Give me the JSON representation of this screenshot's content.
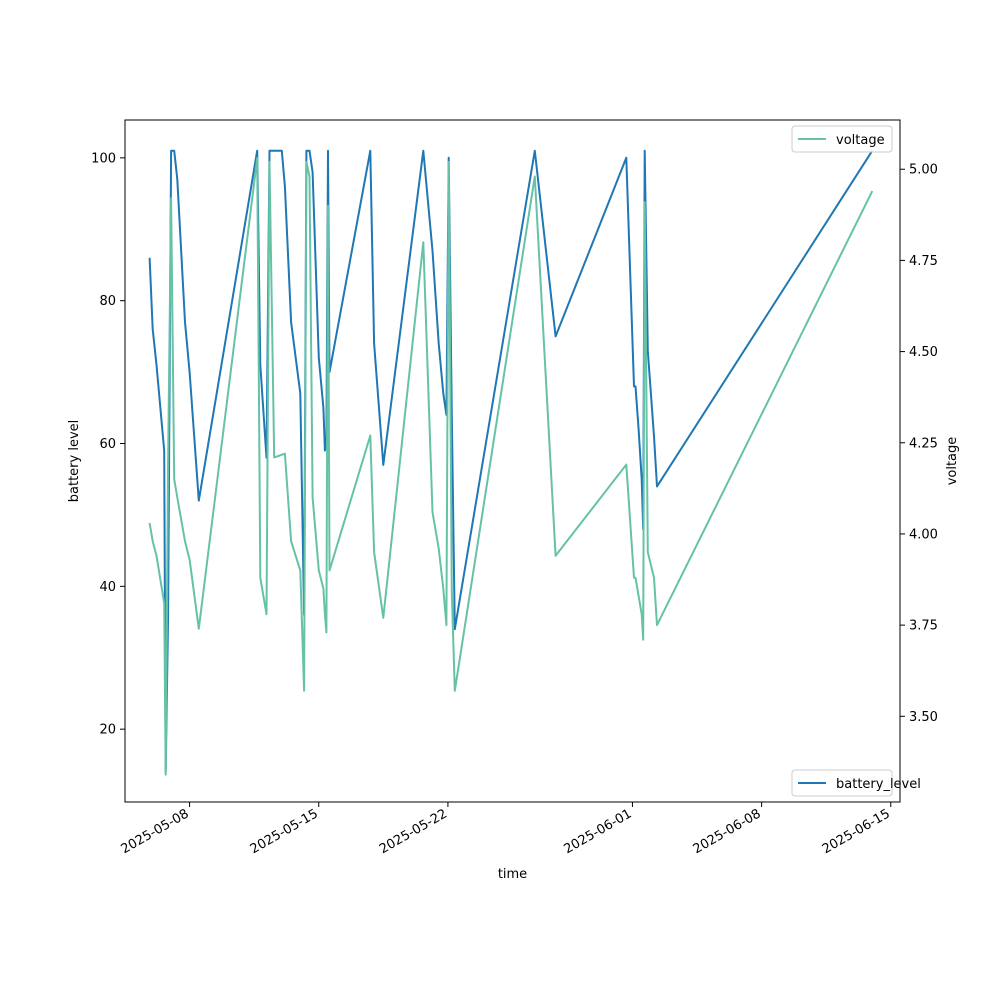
{
  "chart_data": {
    "type": "line",
    "xlabel": "time",
    "ylabel": "battery level",
    "y2label": "voltage",
    "xlim": [
      "2025-05-04T12:00",
      "2025-06-15T12:00"
    ],
    "ylim": [
      9.8,
      105.3
    ],
    "y2lim": [
      3.265,
      5.135
    ],
    "x_ticks": [
      "2025-05-08",
      "2025-05-15",
      "2025-05-22",
      "2025-06-01",
      "2025-06-08",
      "2025-06-15"
    ],
    "y_ticks": [
      20,
      40,
      60,
      80,
      100
    ],
    "y2_ticks": [
      "3.50",
      "3.75",
      "4.00",
      "4.25",
      "4.50",
      "4.75",
      "5.00"
    ],
    "grid": false,
    "series": [
      {
        "name": "battery_level",
        "axis": "left",
        "color": "#1f77b4",
        "legend": "bottom-right",
        "points": [
          [
            "2025-05-05T20:00",
            86
          ],
          [
            "2025-05-06T00:00",
            76
          ],
          [
            "2025-05-06T05:00",
            71
          ],
          [
            "2025-05-06T15:00",
            59
          ],
          [
            "2025-05-06T17:00",
            14
          ],
          [
            "2025-05-06T20:00",
            36
          ],
          [
            "2025-05-07T00:00",
            101
          ],
          [
            "2025-05-07T04:00",
            101
          ],
          [
            "2025-05-07T08:00",
            97
          ],
          [
            "2025-05-07T18:00",
            77
          ],
          [
            "2025-05-08T00:00",
            70
          ],
          [
            "2025-05-08T12:00",
            52
          ],
          [
            "2025-05-11T16:00",
            101
          ],
          [
            "2025-05-11T20:00",
            71
          ],
          [
            "2025-05-12T04:00",
            58
          ],
          [
            "2025-05-12T08:00",
            101
          ],
          [
            "2025-05-13T00:00",
            101
          ],
          [
            "2025-05-13T04:00",
            96
          ],
          [
            "2025-05-13T12:00",
            77
          ],
          [
            "2025-05-14T00:00",
            67
          ],
          [
            "2025-05-14T05:00",
            36
          ],
          [
            "2025-05-14T08:00",
            101
          ],
          [
            "2025-05-14T12:00",
            101
          ],
          [
            "2025-05-14T16:00",
            98
          ],
          [
            "2025-05-15T00:00",
            72
          ],
          [
            "2025-05-15T06:00",
            65
          ],
          [
            "2025-05-15T08:00",
            59
          ],
          [
            "2025-05-15T10:00",
            60
          ],
          [
            "2025-05-15T12:00",
            101
          ],
          [
            "2025-05-15T14:00",
            70
          ],
          [
            "2025-05-17T19:00",
            101
          ],
          [
            "2025-05-18T00:00",
            74
          ],
          [
            "2025-05-18T12:00",
            57
          ],
          [
            "2025-05-20T16:00",
            101
          ],
          [
            "2025-05-21T04:00",
            87
          ],
          [
            "2025-05-21T12:00",
            74
          ],
          [
            "2025-05-21T18:00",
            67
          ],
          [
            "2025-05-21T22:00",
            64
          ],
          [
            "2025-05-22T01:00",
            100
          ],
          [
            "2025-05-22T05:00",
            64
          ],
          [
            "2025-05-22T09:00",
            34
          ],
          [
            "2025-05-26T17:00",
            101
          ],
          [
            "2025-05-27T20:00",
            75
          ],
          [
            "2025-05-31T16:00",
            100
          ],
          [
            "2025-06-01T02:00",
            68
          ],
          [
            "2025-06-01T04:00",
            68
          ],
          [
            "2025-06-01T08:00",
            62
          ],
          [
            "2025-06-01T12:00",
            55
          ],
          [
            "2025-06-01T14:00",
            48
          ],
          [
            "2025-06-01T16:00",
            101
          ],
          [
            "2025-06-01T20:00",
            73
          ],
          [
            "2025-06-02T04:00",
            61
          ],
          [
            "2025-06-02T08:00",
            54
          ],
          [
            "2025-06-14T00:00",
            101
          ]
        ]
      },
      {
        "name": "voltage",
        "axis": "right",
        "color": "#66c2a5",
        "legend": "top-right",
        "points": [
          [
            "2025-05-05T20:00",
            4.03
          ],
          [
            "2025-05-06T00:00",
            3.98
          ],
          [
            "2025-05-06T05:00",
            3.94
          ],
          [
            "2025-05-06T15:00",
            3.81
          ],
          [
            "2025-05-06T17:00",
            3.34
          ],
          [
            "2025-05-06T20:00",
            4.2
          ],
          [
            "2025-05-07T00:00",
            4.92
          ],
          [
            "2025-05-07T04:00",
            4.15
          ],
          [
            "2025-05-07T08:00",
            4.1
          ],
          [
            "2025-05-07T18:00",
            3.98
          ],
          [
            "2025-05-08T00:00",
            3.93
          ],
          [
            "2025-05-08T12:00",
            3.74
          ],
          [
            "2025-05-11T16:00",
            5.03
          ],
          [
            "2025-05-11T20:00",
            3.88
          ],
          [
            "2025-05-12T04:00",
            3.78
          ],
          [
            "2025-05-12T08:00",
            5.02
          ],
          [
            "2025-05-12T14:00",
            4.21
          ],
          [
            "2025-05-13T04:00",
            4.22
          ],
          [
            "2025-05-13T12:00",
            3.98
          ],
          [
            "2025-05-14T00:00",
            3.9
          ],
          [
            "2025-05-14T05:00",
            3.57
          ],
          [
            "2025-05-14T08:00",
            5.02
          ],
          [
            "2025-05-14T12:00",
            4.98
          ],
          [
            "2025-05-14T16:00",
            4.1
          ],
          [
            "2025-05-15T00:00",
            3.9
          ],
          [
            "2025-05-15T06:00",
            3.85
          ],
          [
            "2025-05-15T08:00",
            3.78
          ],
          [
            "2025-05-15T10:00",
            3.73
          ],
          [
            "2025-05-15T12:00",
            4.9
          ],
          [
            "2025-05-15T14:00",
            3.9
          ],
          [
            "2025-05-17T19:00",
            4.27
          ],
          [
            "2025-05-18T00:00",
            3.95
          ],
          [
            "2025-05-18T12:00",
            3.77
          ],
          [
            "2025-05-20T16:00",
            4.8
          ],
          [
            "2025-05-21T04:00",
            4.06
          ],
          [
            "2025-05-21T12:00",
            3.96
          ],
          [
            "2025-05-21T18:00",
            3.85
          ],
          [
            "2025-05-21T22:00",
            3.75
          ],
          [
            "2025-05-22T01:00",
            5.02
          ],
          [
            "2025-05-22T05:00",
            3.84
          ],
          [
            "2025-05-22T09:00",
            3.57
          ],
          [
            "2025-05-26T17:00",
            4.98
          ],
          [
            "2025-05-27T20:00",
            3.94
          ],
          [
            "2025-05-31T16:00",
            4.19
          ],
          [
            "2025-06-01T02:00",
            3.88
          ],
          [
            "2025-06-01T04:00",
            3.88
          ],
          [
            "2025-06-01T08:00",
            3.83
          ],
          [
            "2025-06-01T12:00",
            3.78
          ],
          [
            "2025-06-01T14:00",
            3.71
          ],
          [
            "2025-06-01T16:00",
            4.91
          ],
          [
            "2025-06-01T20:00",
            3.95
          ],
          [
            "2025-06-02T04:00",
            3.88
          ],
          [
            "2025-06-02T08:00",
            3.75
          ],
          [
            "2025-06-14T00:00",
            4.94
          ]
        ]
      }
    ]
  }
}
